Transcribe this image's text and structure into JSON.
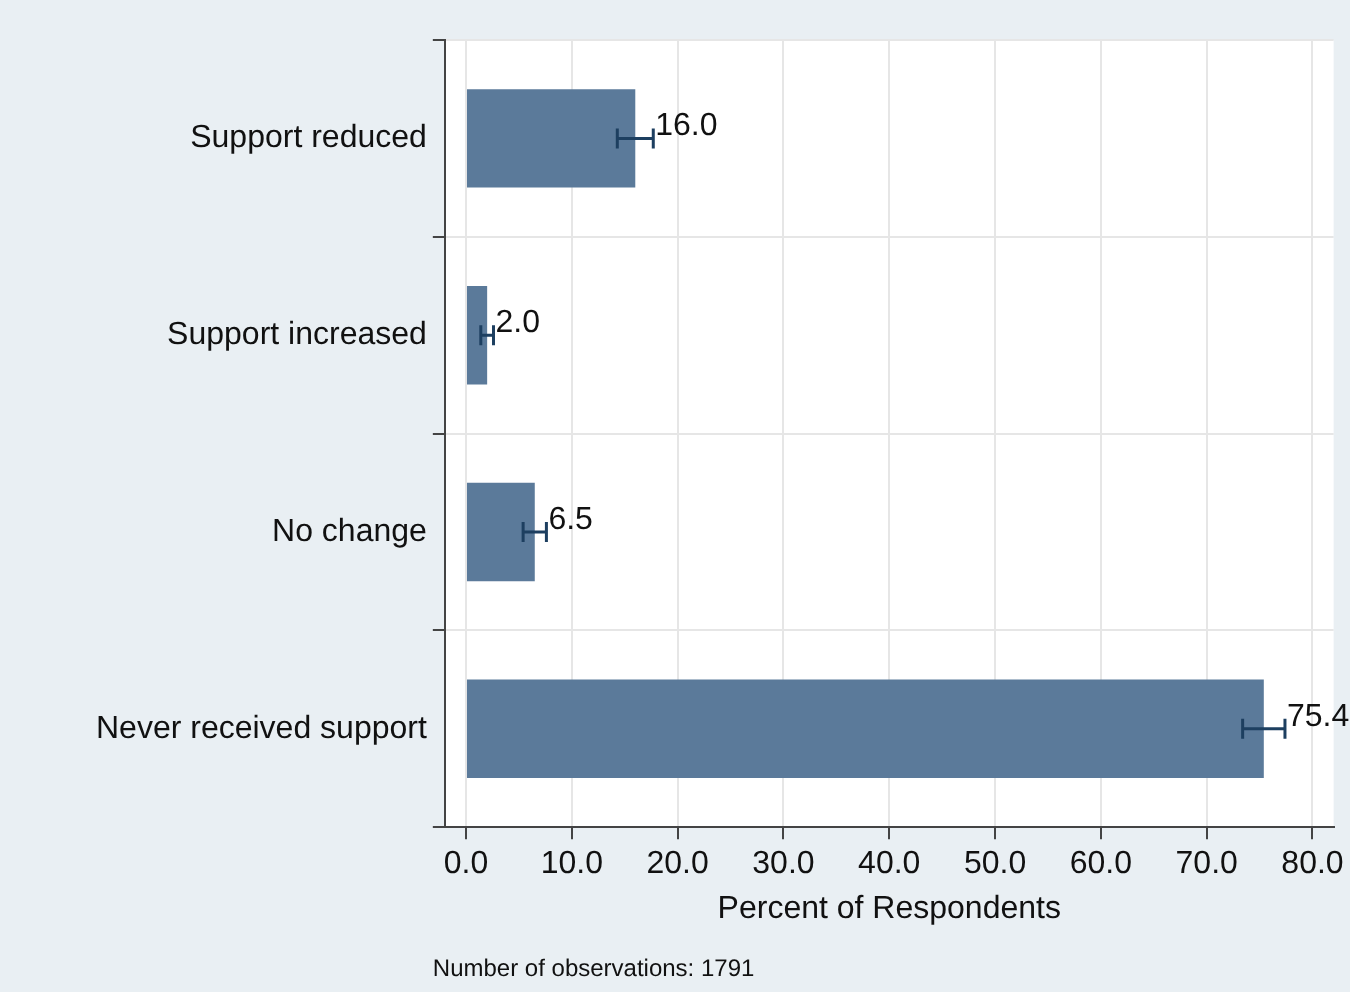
{
  "chart_data": {
    "type": "bar",
    "orientation": "horizontal",
    "categories": [
      "Support reduced",
      "Support increased",
      "No change",
      "Never received support"
    ],
    "values": [
      16.0,
      2.0,
      6.5,
      75.4
    ],
    "value_labels": [
      "16.0",
      "2.0",
      "6.5",
      "75.4"
    ],
    "errors": [
      1.7,
      0.6,
      1.1,
      2.0
    ],
    "color": "#5b7a9a",
    "xlabel": "Percent of Respondents",
    "xlim": [
      -2,
      82
    ],
    "xticks": [
      {
        "value": 0,
        "label": "0.0"
      },
      {
        "value": 10,
        "label": "10.0"
      },
      {
        "value": 20,
        "label": "20.0"
      },
      {
        "value": 30,
        "label": "30.0"
      },
      {
        "value": 40,
        "label": "40.0"
      },
      {
        "value": 50,
        "label": "50.0"
      },
      {
        "value": 60,
        "label": "60.0"
      },
      {
        "value": 70,
        "label": "70.0"
      },
      {
        "value": 80,
        "label": "80.0"
      }
    ],
    "grid": true,
    "legend": false,
    "annotations": [
      "Number of observations: 1791"
    ]
  }
}
